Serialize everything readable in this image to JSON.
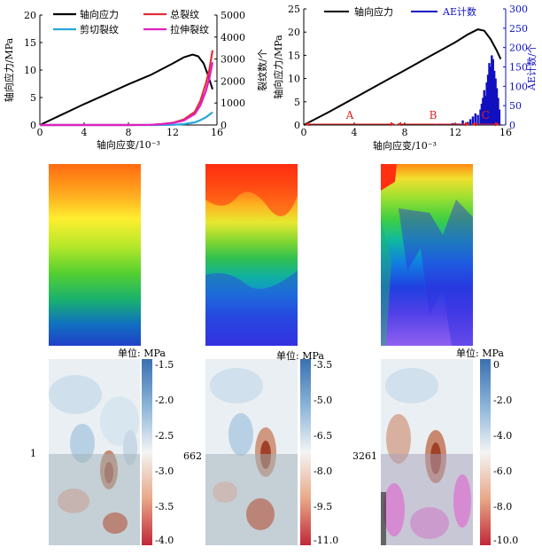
{
  "chart_data": [
    {
      "type": "line",
      "title": "",
      "xlabel": "轴向应变/10⁻³",
      "ylabel": "轴向应力/MPa",
      "ylabel_right": "裂纹数/个",
      "xlim": [
        0,
        16
      ],
      "ylim": [
        0,
        20
      ],
      "ylim_right": [
        0,
        5000
      ],
      "x_ticks": [
        "0",
        "4",
        "8",
        "12",
        "16"
      ],
      "y_ticks": [
        "0",
        "5",
        "10",
        "15",
        "20"
      ],
      "y_right_ticks": [
        "0",
        "1000",
        "2000",
        "3000",
        "4000",
        "5000"
      ],
      "legend": [
        "轴向应力",
        "总裂纹",
        "剪切裂纹",
        "拉伸裂纹"
      ],
      "series": [
        {
          "name": "轴向应力",
          "axis": "left",
          "color": "#000000",
          "x": [
            0,
            2,
            4,
            6,
            8,
            10,
            12,
            13,
            13.8,
            14.3,
            14.8,
            15.2,
            15.6
          ],
          "y": [
            0,
            1.9,
            3.8,
            5.6,
            7.4,
            9.1,
            11.2,
            12.3,
            12.8,
            12.5,
            11.2,
            9.0,
            6.5
          ]
        },
        {
          "name": "总裂纹",
          "axis": "right",
          "color": "#e0303c",
          "x": [
            0,
            8,
            10,
            11,
            12,
            13,
            14,
            14.5,
            15,
            15.3,
            15.6
          ],
          "y": [
            0,
            0,
            10,
            40,
            100,
            250,
            600,
            1100,
            1900,
            2500,
            3400
          ]
        },
        {
          "name": "剪切裂纹",
          "axis": "right",
          "color": "#2aa6d8",
          "x": [
            0,
            10,
            12,
            13,
            14,
            14.5,
            15,
            15.6
          ],
          "y": [
            0,
            0,
            10,
            40,
            120,
            220,
            350,
            580
          ]
        },
        {
          "name": "拉伸裂纹",
          "axis": "right",
          "color": "#e020c0",
          "x": [
            0,
            8,
            10,
            11,
            12,
            13,
            14,
            14.5,
            15,
            15.3,
            15.6
          ],
          "y": [
            0,
            0,
            10,
            40,
            90,
            200,
            500,
            900,
            1550,
            2100,
            2850
          ]
        }
      ]
    },
    {
      "type": "line+bar",
      "title": "",
      "xlabel": "轴向应变/10⁻³",
      "ylabel": "轴向应力/MPa",
      "ylabel_right": "AE计数/个",
      "xlim": [
        0,
        16
      ],
      "ylim": [
        0,
        25
      ],
      "ylim_right": [
        0,
        300
      ],
      "x_ticks": [
        "0",
        "4",
        "8",
        "12",
        "16"
      ],
      "y_ticks": [
        "0",
        "5",
        "10",
        "15",
        "20",
        "25"
      ],
      "y_right_ticks": [
        "0",
        "50",
        "100",
        "150",
        "200",
        "250",
        "300"
      ],
      "legend": [
        "轴向应力",
        "AE计数"
      ],
      "stage_labels": [
        "A",
        "B",
        "C"
      ],
      "stage_bounds": [
        0,
        7.3,
        13.2,
        15.6
      ],
      "series": [
        {
          "name": "轴向应力",
          "axis": "left",
          "color": "#000000",
          "x": [
            0,
            2,
            4,
            6,
            8,
            10,
            12,
            13,
            13.8,
            14.3,
            14.8,
            15.3,
            15.6
          ],
          "y": [
            0,
            2.8,
            5.8,
            8.8,
            11.8,
            14.8,
            17.8,
            19.5,
            20.6,
            20.3,
            18.5,
            16.0,
            14.2
          ]
        },
        {
          "name": "AE计数",
          "axis": "right",
          "color": "#1010c0",
          "x": [
            10.5,
            11.2,
            11.8,
            12.2,
            12.6,
            13.0,
            13.2,
            13.4,
            13.6,
            13.8,
            14.0,
            14.1,
            14.2,
            14.3,
            14.4,
            14.5,
            14.6,
            14.7,
            14.8,
            14.9,
            15.0,
            15.1,
            15.2,
            15.3,
            15.4,
            15.5
          ],
          "y": [
            2,
            3,
            5,
            4,
            12,
            8,
            15,
            22,
            30,
            26,
            40,
            55,
            70,
            90,
            75,
            110,
            130,
            160,
            150,
            180,
            170,
            140,
            120,
            95,
            70,
            40
          ]
        }
      ]
    }
  ],
  "stress_maps": [
    {
      "unit": "单位: MPa",
      "ticks": [
        "-1.5",
        "-2.0",
        "-2.5",
        "-3.0",
        "-3.5",
        "-4.0"
      ],
      "step": "1"
    },
    {
      "unit": "单位: MPa",
      "ticks": [
        "-3.5",
        "-5.0",
        "-6.5",
        "-8.0",
        "-9.5",
        "-11.0"
      ],
      "step": "662"
    },
    {
      "unit": "单位: MPa",
      "ticks": [
        "0",
        "-2.0",
        "-4.0",
        "-6.0",
        "-8.0",
        "-10.0"
      ],
      "step": "3261"
    }
  ],
  "colors": {
    "stress": "#000000",
    "total_cracks": "#e0303c",
    "shear_cracks": "#2aa6d8",
    "tensile_cracks": "#e020c0",
    "ae": "#1010c0",
    "stage": "#e02020"
  }
}
